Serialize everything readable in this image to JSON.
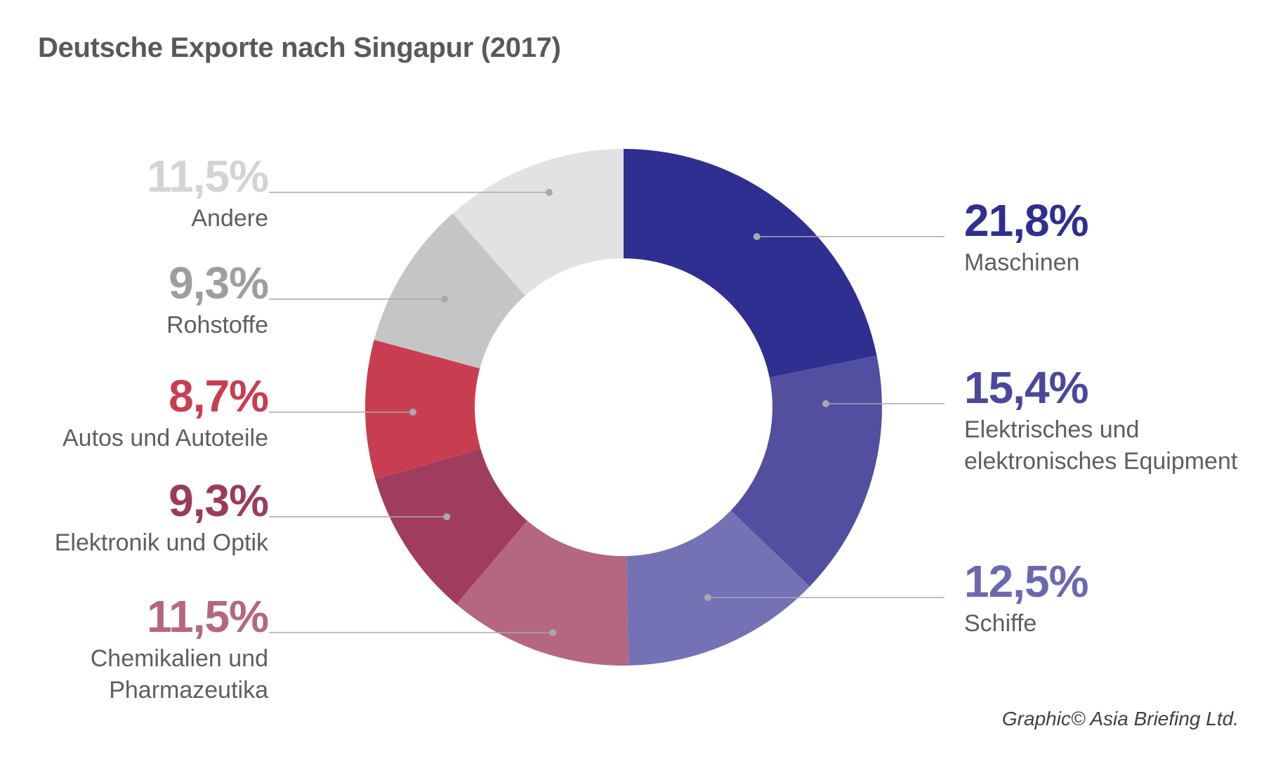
{
  "chart_data": {
    "type": "pie",
    "variant": "donut",
    "title": "Deutsche Exporte nach Singapur (2017)",
    "slices": [
      {
        "label_lines": [
          "Maschinen"
        ],
        "value": 21.8,
        "value_label": "21,8%",
        "color": "#2e2f91",
        "label_color": "#2e2f91",
        "side": "right"
      },
      {
        "label_lines": [
          "Elektrisches und",
          "elektronisches Equipment"
        ],
        "value": 15.4,
        "value_label": "15,4%",
        "color": "#524ea0",
        "label_color": "#4b479c",
        "side": "right"
      },
      {
        "label_lines": [
          "Schiffe"
        ],
        "value": 12.5,
        "value_label": "12,5%",
        "color": "#7571b5",
        "label_color": "#6c68b0",
        "side": "right"
      },
      {
        "label_lines": [
          "Chemikalien und",
          "Pharmazeutika"
        ],
        "value": 11.5,
        "value_label": "11,5%",
        "color": "#b5677f",
        "label_color": "#b5677f",
        "side": "left"
      },
      {
        "label_lines": [
          "Elektronik und Optik"
        ],
        "value": 9.3,
        "value_label": "9,3%",
        "color": "#a03c5e",
        "label_color": "#9c3a5b",
        "side": "left"
      },
      {
        "label_lines": [
          "Autos und Autoteile"
        ],
        "value": 8.7,
        "value_label": "8,7%",
        "color": "#c83e50",
        "label_color": "#c83e50",
        "side": "left"
      },
      {
        "label_lines": [
          "Rohstoffe"
        ],
        "value": 9.3,
        "value_label": "9,3%",
        "color": "#c4c5c7",
        "label_color": "#9d9ea0",
        "side": "left"
      },
      {
        "label_lines": [
          "Andere"
        ],
        "value": 11.5,
        "value_label": "11,5%",
        "color": "#e1e2e3",
        "label_color": "#d3d4d6",
        "side": "left"
      }
    ]
  },
  "credit": "Graphic© Asia Briefing Ltd."
}
